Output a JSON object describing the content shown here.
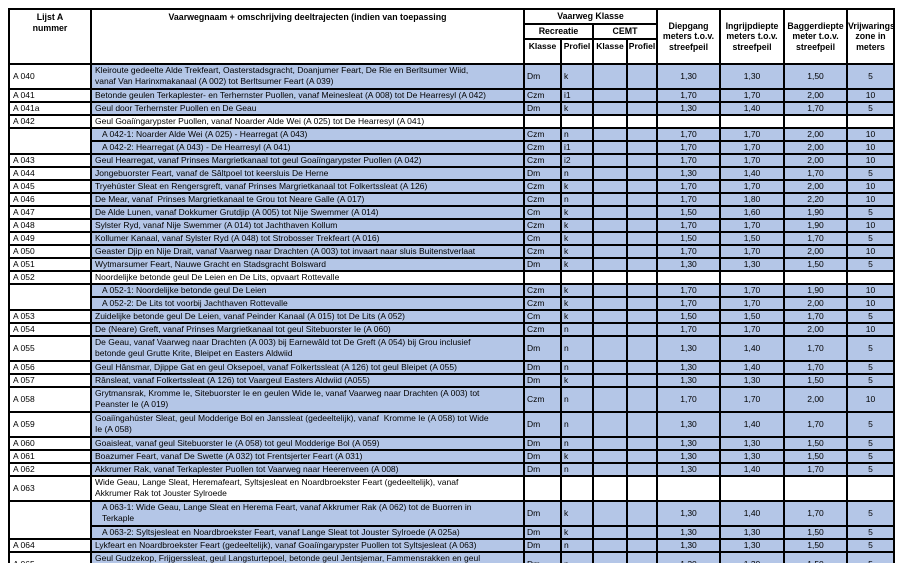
{
  "colors": {
    "highlight": "#b4c6e7",
    "border": "#000000",
    "background": "#ffffff"
  },
  "table": {
    "headers": {
      "nummer": "Lijst A\nnummer",
      "vaarwegnaam": "Vaarwegnaam + omschrijving deeltrajecten (indien van toepassing",
      "vaarweg_klasse": "Vaarweg Klasse",
      "recreatie": "Recreatie",
      "cemt": "CEMT",
      "recreatie_klasse": "Klasse",
      "recreatie_profiel": "Profiel",
      "cemt_klasse": "Klasse",
      "cemt_profiel": "Profiel",
      "diepgang": "Diepgang\nmeters t.o.v.\nstreefpeil",
      "ingrijpdiepte": "Ingrijpdiepte\nmeters t.o.v.\nstreefpeil",
      "baggerdiepte": "Baggerdiepte\nmeter t.o.v.\nstreefpeil",
      "vrijwaringszone": "Vrijwarings\nzone in\nmeters"
    },
    "rows": [
      {
        "nr": "A 040",
        "nr_span": 1,
        "sub": false,
        "tall": true,
        "filled": true,
        "desc": "Kleiroute gedeelte Alde Trekfeart, Oasterstadsgracht, Doanjumer Feart, De Rie en Berltsumer Wiid,\nvanaf Van Harinxmakanaal (A 002) tot Berltsumer Feart (A 039)",
        "k": "Dm",
        "p": "k",
        "ck": "",
        "cp": "",
        "d": "1,30",
        "i": "1,30",
        "b": "1,50",
        "v": "5"
      },
      {
        "nr": "A 041",
        "nr_span": 1,
        "sub": false,
        "tall": false,
        "filled": true,
        "desc": "Betonde geulen Terkaplester- en Terhernster Puollen, vanaf Meinesleat (A 008) tot De Hearresyl (A 042)",
        "k": "Czm",
        "p": "i1",
        "ck": "",
        "cp": "",
        "d": "1,70",
        "i": "1,70",
        "b": "2,00",
        "v": "10"
      },
      {
        "nr": "A 041a",
        "nr_span": 1,
        "sub": false,
        "tall": false,
        "filled": true,
        "desc": "Geul door Terhernster Puollen en De Geau",
        "k": "Dm",
        "p": "k",
        "ck": "",
        "cp": "",
        "d": "1,30",
        "i": "1,40",
        "b": "1,70",
        "v": "5"
      },
      {
        "nr": "A 042",
        "nr_span": 1,
        "sub": false,
        "tall": false,
        "filled": false,
        "desc": "Geul Goaiïngarypster Puollen, vanaf Noarder Alde Wei (A 025) tot De Hearresyl (A 041)",
        "k": "",
        "p": "",
        "ck": "",
        "cp": "",
        "d": "",
        "i": "",
        "b": "",
        "v": ""
      },
      {
        "nr": "",
        "nr_span": 2,
        "sub": true,
        "tall": false,
        "filled": true,
        "desc": "A 042-1: Noarder Alde Wei (A 025) - Hearregat (A 043)",
        "k": "Czm",
        "p": "n",
        "ck": "",
        "cp": "",
        "d": "1,70",
        "i": "1,70",
        "b": "2,00",
        "v": "10"
      },
      {
        "nr": null,
        "nr_span": 0,
        "sub": true,
        "tall": false,
        "filled": true,
        "desc": "A 042-2: Hearregat (A 043) - De Hearresyl (A 041)",
        "k": "Czm",
        "p": "i1",
        "ck": "",
        "cp": "",
        "d": "1,70",
        "i": "1,70",
        "b": "2,00",
        "v": "10"
      },
      {
        "nr": "A 043",
        "nr_span": 1,
        "sub": false,
        "tall": false,
        "filled": true,
        "desc": "Geul Hearregat, vanaf Prinses Margrietkanaal tot geul Goaiïngarypster Puollen (A 042)",
        "k": "Czm",
        "p": "i2",
        "ck": "",
        "cp": "",
        "d": "1,70",
        "i": "1,70",
        "b": "2,00",
        "v": "10"
      },
      {
        "nr": "A 044",
        "nr_span": 1,
        "sub": false,
        "tall": false,
        "filled": true,
        "desc": "Jongebuorster Feart, vanaf de Sâltpoel tot keersluis De Herne",
        "k": "Dm",
        "p": "n",
        "ck": "",
        "cp": "",
        "d": "1,30",
        "i": "1,40",
        "b": "1,70",
        "v": "5"
      },
      {
        "nr": "A 045",
        "nr_span": 1,
        "sub": false,
        "tall": false,
        "filled": true,
        "desc": "Tryehúster Sleat en Rengersgreft, vanaf Prinses Margrietkanaal tot Folkertssleat (A 126)",
        "k": "Czm",
        "p": "k",
        "ck": "",
        "cp": "",
        "d": "1,70",
        "i": "1,70",
        "b": "2,00",
        "v": "10"
      },
      {
        "nr": "A 046",
        "nr_span": 1,
        "sub": false,
        "tall": false,
        "filled": true,
        "desc": "De Mear, vanaf  Prinses Margrietkanaal te Grou tot Neare Galle (A 017)",
        "k": "Czm",
        "p": "n",
        "ck": "",
        "cp": "",
        "d": "1,70",
        "i": "1,80",
        "b": "2,20",
        "v": "10"
      },
      {
        "nr": "A 047",
        "nr_span": 1,
        "sub": false,
        "tall": false,
        "filled": true,
        "desc": "De Alde Lunen, vanaf Dokkumer Grutdjip (A 005) tot Nije Swemmer (A 014)",
        "k": "Cm",
        "p": "k",
        "ck": "",
        "cp": "",
        "d": "1,50",
        "i": "1,60",
        "b": "1,90",
        "v": "5"
      },
      {
        "nr": "A 048",
        "nr_span": 1,
        "sub": false,
        "tall": false,
        "filled": true,
        "desc": "Sylster Ryd, vanaf Nije Swemmer (A 014) tot Jachthaven Kollum",
        "k": "Czm",
        "p": "k",
        "ck": "",
        "cp": "",
        "d": "1,70",
        "i": "1,70",
        "b": "1,90",
        "v": "10"
      },
      {
        "nr": "A 049",
        "nr_span": 1,
        "sub": false,
        "tall": false,
        "filled": true,
        "desc": "Kollumer Kanaal, vanaf Sylster Ryd (A 048) tot Strobosser Trekfeart (A 016)",
        "k": "Cm",
        "p": "k",
        "ck": "",
        "cp": "",
        "d": "1,50",
        "i": "1,50",
        "b": "1,70",
        "v": "5"
      },
      {
        "nr": "A 050",
        "nr_span": 1,
        "sub": false,
        "tall": false,
        "filled": true,
        "desc": "Geaster Djip en Nije Drait, vanaf Vaarweg naar Drachten (A 003) tot invaart naar sluis Buitenstverlaat",
        "k": "Czm",
        "p": "k",
        "ck": "",
        "cp": "",
        "d": "1,70",
        "i": "1,70",
        "b": "2,00",
        "v": "10"
      },
      {
        "nr": "A 051",
        "nr_span": 1,
        "sub": false,
        "tall": false,
        "filled": true,
        "desc": "Wytmarsumer Feart, Nauwe Gracht en Stadsgracht Bolsward",
        "k": "Dm",
        "p": "k",
        "ck": "",
        "cp": "",
        "d": "1,30",
        "i": "1,30",
        "b": "1,50",
        "v": "5"
      },
      {
        "nr": "A 052",
        "nr_span": 1,
        "sub": false,
        "tall": false,
        "filled": false,
        "desc": "Noordelijke betonde geul De Leien en De Lits, opvaart Rottevalle",
        "k": "",
        "p": "",
        "ck": "",
        "cp": "",
        "d": "",
        "i": "",
        "b": "",
        "v": ""
      },
      {
        "nr": "",
        "nr_span": 2,
        "sub": true,
        "tall": false,
        "filled": true,
        "desc": "A 052-1: Noordelijke betonde geul De Leien",
        "k": "Czm",
        "p": "k",
        "ck": "",
        "cp": "",
        "d": "1,70",
        "i": "1,70",
        "b": "1,90",
        "v": "10"
      },
      {
        "nr": null,
        "nr_span": 0,
        "sub": true,
        "tall": false,
        "filled": true,
        "desc": "A 052-2: De Lits tot voorbij Jachthaven Rottevalle",
        "k": "Czm",
        "p": "k",
        "ck": "",
        "cp": "",
        "d": "1,70",
        "i": "1,70",
        "b": "2,00",
        "v": "10"
      },
      {
        "nr": "A 053",
        "nr_span": 1,
        "sub": false,
        "tall": false,
        "filled": true,
        "desc": "Zuidelijke betonde geul De Leien, vanaf Peinder Kanaal (A 015) tot De Lits (A 052)",
        "k": "Cm",
        "p": "k",
        "ck": "",
        "cp": "",
        "d": "1,50",
        "i": "1,50",
        "b": "1,70",
        "v": "5"
      },
      {
        "nr": "A 054",
        "nr_span": 1,
        "sub": false,
        "tall": false,
        "filled": true,
        "desc": "De (Neare) Greft, vanaf Prinses Margrietkanaal tot geul Sitebuorster Ie (A 060)",
        "k": "Czm",
        "p": "n",
        "ck": "",
        "cp": "",
        "d": "1,70",
        "i": "1,70",
        "b": "2,00",
        "v": "10"
      },
      {
        "nr": "A 055",
        "nr_span": 1,
        "sub": false,
        "tall": true,
        "filled": true,
        "desc": "De Geau, vanaf Vaarweg naar Drachten (A 003) bij Earnewâld tot De Greft (A 054) bij Grou inclusief\nbetonde geul Grutte Krite, Bleipet en Easters Aldwiid",
        "k": "Dm",
        "p": "n",
        "ck": "",
        "cp": "",
        "d": "1,30",
        "i": "1,40",
        "b": "1,70",
        "v": "5"
      },
      {
        "nr": "A 056",
        "nr_span": 1,
        "sub": false,
        "tall": false,
        "filled": true,
        "desc": "Geul Hânsmar, Djippe Gat en geul Oksepoel, vanaf Folkertssleat (A 126) tot geul Bleipet (A 055)",
        "k": "Dm",
        "p": "n",
        "ck": "",
        "cp": "",
        "d": "1,30",
        "i": "1,40",
        "b": "1,70",
        "v": "5"
      },
      {
        "nr": "A 057",
        "nr_span": 1,
        "sub": false,
        "tall": false,
        "filled": true,
        "desc": "Rânsleat, vanaf Folkertssleat (A 126) tot Vaargeul Easters Aldwiid (A055)",
        "k": "Dm",
        "p": "k",
        "ck": "",
        "cp": "",
        "d": "1,30",
        "i": "1,30",
        "b": "1,50",
        "v": "5"
      },
      {
        "nr": "A 058",
        "nr_span": 1,
        "sub": false,
        "tall": true,
        "filled": true,
        "desc": "Grytmansrak, Kromme Ie, Sitebuorster Ie en geulen Wide Ie, vanaf Vaarweg naar Drachten (A 003) tot\nPeanster Ie (A 019)",
        "k": "Czm",
        "p": "n",
        "ck": "",
        "cp": "",
        "d": "1,70",
        "i": "1,70",
        "b": "2,00",
        "v": "10"
      },
      {
        "nr": "A 059",
        "nr_span": 1,
        "sub": false,
        "tall": true,
        "filled": true,
        "desc": "Goaiïngahúster Sleat, geul Modderige Bol en Janssleat (gedeeltelijk), vanaf  Kromme Ie (A 058) tot Wide\nIe (A 058)",
        "k": "Dm",
        "p": "n",
        "ck": "",
        "cp": "",
        "d": "1,30",
        "i": "1,40",
        "b": "1,70",
        "v": "5"
      },
      {
        "nr": "A 060",
        "nr_span": 1,
        "sub": false,
        "tall": false,
        "filled": true,
        "desc": "Goaisleat, vanaf geul Sitebuorster Ie (A 058) tot geul Modderige Bol (A 059)",
        "k": "Dm",
        "p": "n",
        "ck": "",
        "cp": "",
        "d": "1,30",
        "i": "1,30",
        "b": "1,50",
        "v": "5"
      },
      {
        "nr": "A 061",
        "nr_span": 1,
        "sub": false,
        "tall": false,
        "filled": true,
        "desc": "Boazumer Feart, vanaf De Swette (A 032) tot Frentsjerter Feart (A 031)",
        "k": "Dm",
        "p": "k",
        "ck": "",
        "cp": "",
        "d": "1,30",
        "i": "1,30",
        "b": "1,50",
        "v": "5"
      },
      {
        "nr": "A 062",
        "nr_span": 1,
        "sub": false,
        "tall": false,
        "filled": true,
        "desc": "Akkrumer Rak, vanaf Terkaplester Puollen tot Vaarweg naar Heerenveen (A 008)",
        "k": "Dm",
        "p": "n",
        "ck": "",
        "cp": "",
        "d": "1,30",
        "i": "1,40",
        "b": "1,70",
        "v": "5"
      },
      {
        "nr": "A 063",
        "nr_span": 1,
        "sub": false,
        "tall": true,
        "filled": false,
        "desc": "Wide Geau, Lange Sleat, Heremafeart, Syltsjesleat en Noardbroekster Feart (gedeeltelijk), vanaf\nAkkrumer Rak tot Jouster Sylroede",
        "k": "",
        "p": "",
        "ck": "",
        "cp": "",
        "d": "",
        "i": "",
        "b": "",
        "v": ""
      },
      {
        "nr": "",
        "nr_span": 2,
        "sub": true,
        "tall": true,
        "filled": true,
        "desc": "A 063-1: Wide Geau, Lange Sleat en Herema Feart, vanaf Akkrumer Rak (A 062) tot de Buorren in\nTerkaple",
        "k": "Dm",
        "p": "k",
        "ck": "",
        "cp": "",
        "d": "1,30",
        "i": "1,40",
        "b": "1,70",
        "v": "5"
      },
      {
        "nr": null,
        "nr_span": 0,
        "sub": true,
        "tall": false,
        "filled": true,
        "desc": "A 063-2: Syltsjesleat en Noardbroekster Feart, vanaf Lange Sleat tot Jouster Sylroede (A 025a)",
        "k": "Dm",
        "p": "k",
        "ck": "",
        "cp": "",
        "d": "1,30",
        "i": "1,30",
        "b": "1,50",
        "v": "5"
      },
      {
        "nr": "A 064",
        "nr_span": 1,
        "sub": false,
        "tall": false,
        "filled": true,
        "desc": "Lykfeart en Noardbroekster Feart (gedeeltelijk), vanaf Goaiïngarypster Puollen tot Syltsjesleat (A 063)",
        "k": "Dm",
        "p": "n",
        "ck": "",
        "cp": "",
        "d": "1,30",
        "i": "1,30",
        "b": "1,50",
        "v": "5"
      },
      {
        "nr": "A 065",
        "nr_span": 1,
        "sub": false,
        "tall": true,
        "filled": true,
        "desc": "Geul Gudzekop, Frijgerssleat, geul Langsturtepoel, betonde geul Jentsjemar, Fammensrakken en geul\nDe Brekken, vanaf Langwarder Feart (A 024) tot Noarder Alde Wei (A 025)",
        "k": "Dm",
        "p": "n",
        "ck": "",
        "cp": "",
        "d": "1,30",
        "i": "1,30",
        "b": "1,50",
        "v": "5"
      },
      {
        "nr": "A 066",
        "nr_span": 1,
        "sub": false,
        "tall": false,
        "filled": true,
        "desc": "De Kaai, vanaf Langwarder Wielen (A 024) tot geul De Brekken (A 065)",
        "k": "Dm",
        "p": "k",
        "ck": "",
        "cp": "",
        "d": "1,30",
        "i": "1,30",
        "b": "1,50",
        "v": "5"
      }
    ]
  }
}
